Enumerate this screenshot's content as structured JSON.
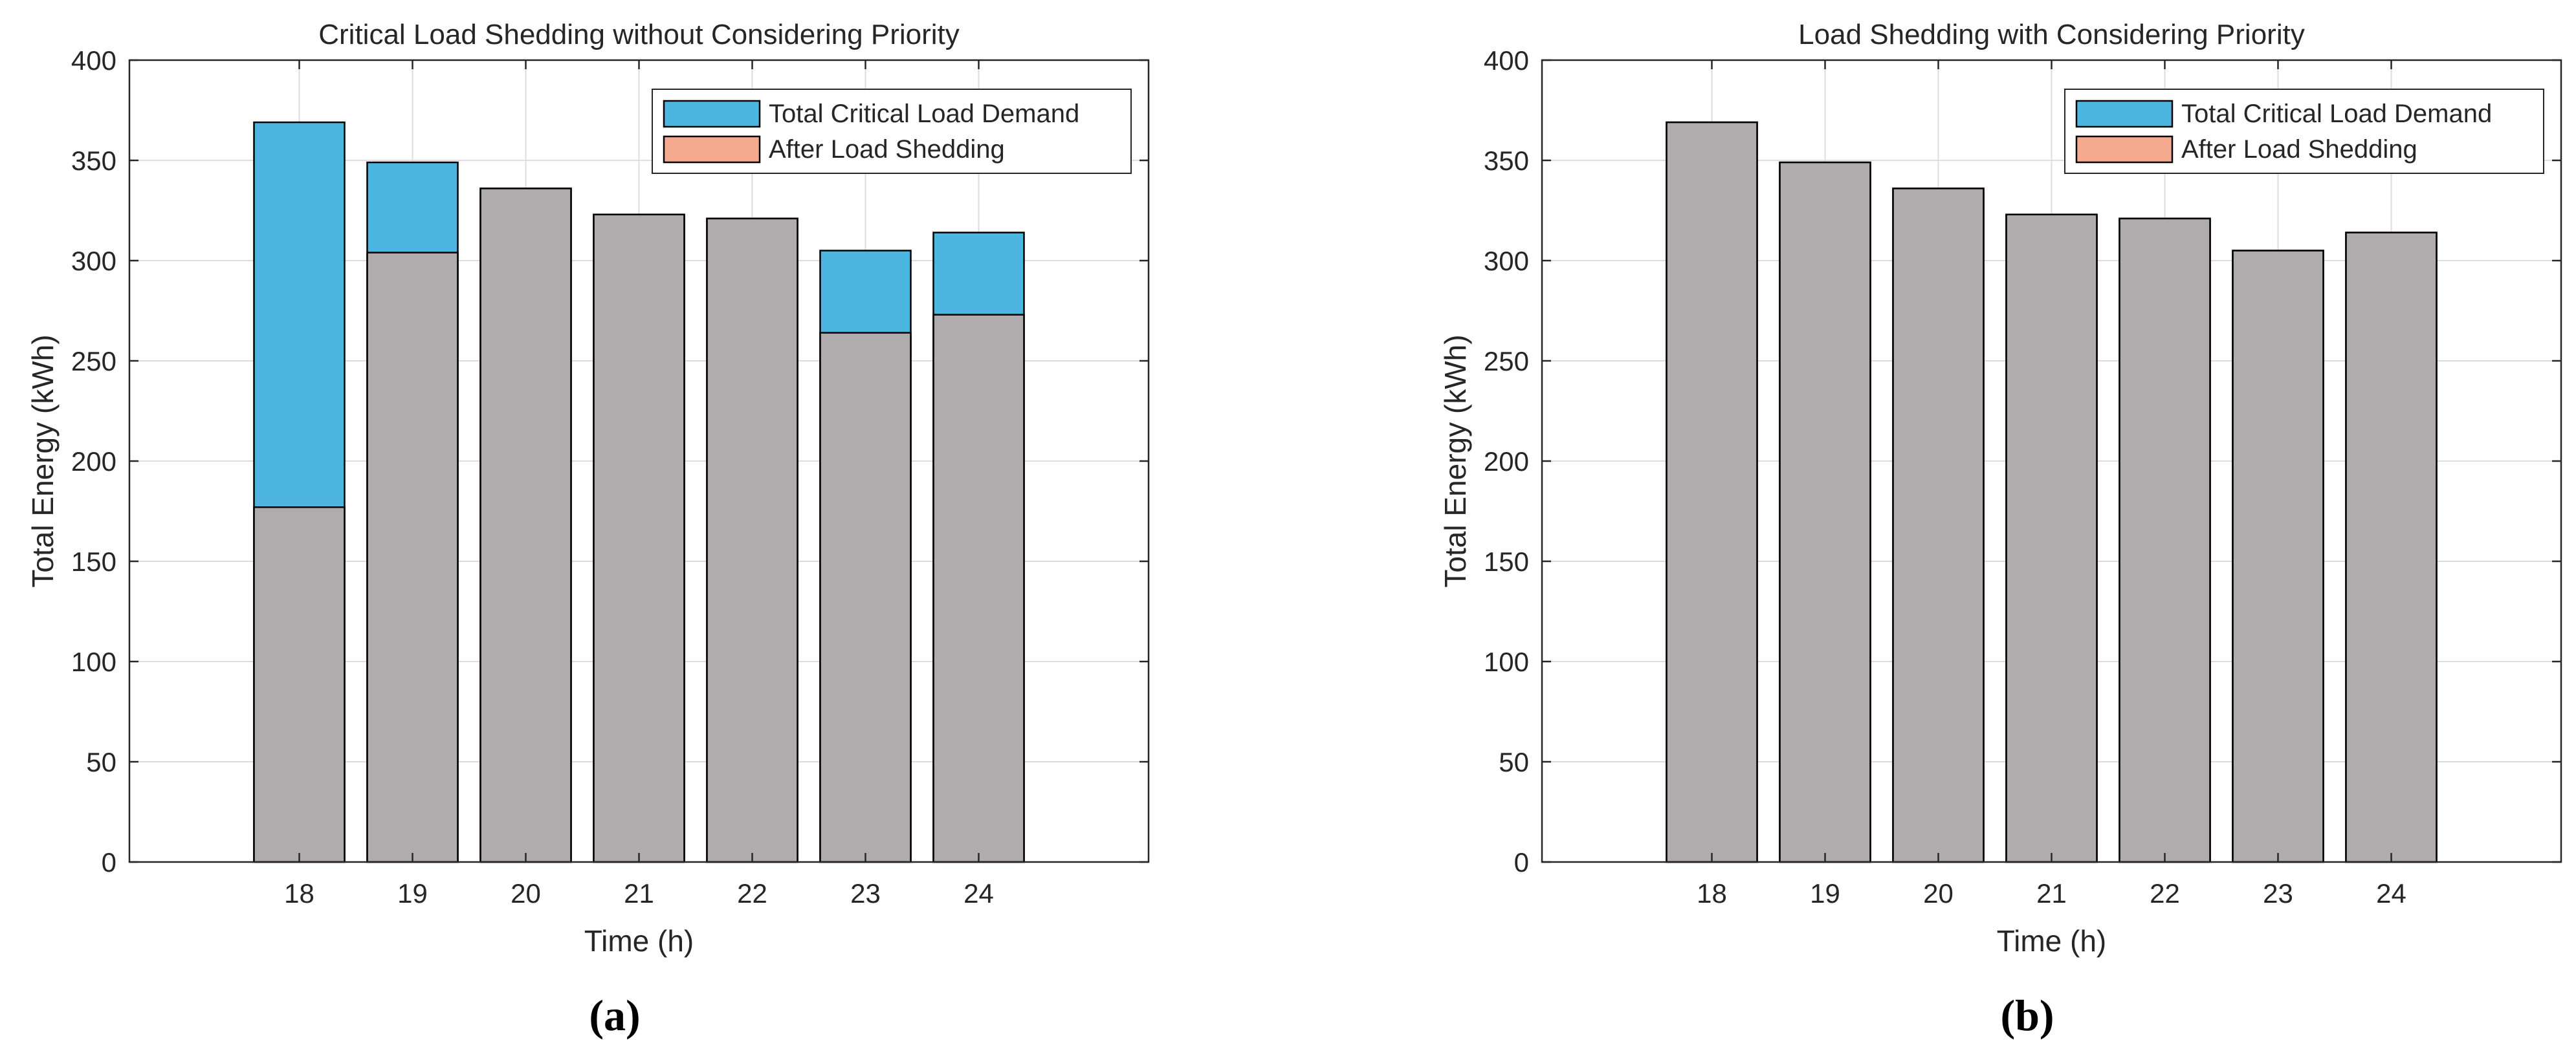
{
  "figure": {
    "panel_a_caption": "(a)",
    "panel_b_caption": "(b)"
  },
  "colors": {
    "demand": "#4db6e0",
    "shed": "#f4a58a",
    "overlap": "#b5857a",
    "grid": "#dcdcdc",
    "axis": "#262626"
  },
  "chart_data": [
    {
      "type": "bar",
      "title": "Critical Load Shedding without Considering Priority",
      "xlabel": "Time (h)",
      "ylabel": "Total Energy (kWh)",
      "ylim": [
        0,
        400
      ],
      "yticks": [
        0,
        50,
        100,
        150,
        200,
        250,
        300,
        350,
        400
      ],
      "grid": true,
      "legend_position": "top-right",
      "caption": "(a)",
      "categories": [
        "18",
        "19",
        "20",
        "21",
        "22",
        "23",
        "24"
      ],
      "series": [
        {
          "name": "Total Critical Load Demand",
          "values": [
            369,
            349,
            336,
            323,
            321,
            305,
            314
          ]
        },
        {
          "name": "After Load Shedding",
          "values": [
            177,
            304,
            336,
            323,
            321,
            264,
            273
          ]
        }
      ]
    },
    {
      "type": "bar",
      "title": "Load Shedding with Considering Priority",
      "xlabel": "Time (h)",
      "ylabel": "Total Energy (kWh)",
      "ylim": [
        0,
        400
      ],
      "yticks": [
        0,
        50,
        100,
        150,
        200,
        250,
        300,
        350,
        400
      ],
      "grid": true,
      "legend_position": "top-right",
      "caption": "(b)",
      "categories": [
        "18",
        "19",
        "20",
        "21",
        "22",
        "23",
        "24"
      ],
      "series": [
        {
          "name": "Total Critical Load Demand",
          "values": [
            369,
            349,
            336,
            323,
            321,
            305,
            314
          ]
        },
        {
          "name": "After Load Shedding",
          "values": [
            369,
            349,
            336,
            323,
            321,
            305,
            314
          ]
        }
      ]
    }
  ]
}
